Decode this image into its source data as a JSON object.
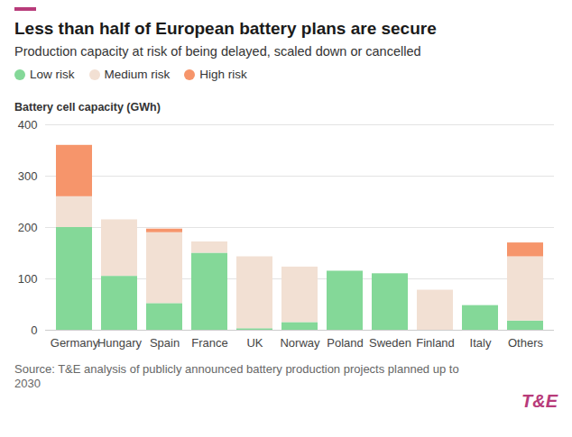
{
  "chart_data": {
    "type": "bar",
    "stacked": true,
    "title": "Less than half of European battery plans are secure",
    "subtitle": "Production capacity at risk of being delayed, scaled down or cancelled",
    "y_label": "Battery cell capacity (GWh)",
    "source": "Source: T&E analysis of publicly announced battery production projects planned up to 2030",
    "logo": "T&E",
    "categories": [
      "Germany",
      "Hungary",
      "Spain",
      "France",
      "UK",
      "Norway",
      "Poland",
      "Sweden",
      "Finland",
      "Italy",
      "Others"
    ],
    "series": [
      {
        "name": "Low risk",
        "color": "#84d898",
        "values": [
          200,
          105,
          52,
          150,
          3,
          15,
          115,
          110,
          0,
          48,
          18
        ]
      },
      {
        "name": "Medium risk",
        "color": "#f2e0d3",
        "values": [
          60,
          110,
          138,
          22,
          140,
          108,
          0,
          0,
          78,
          0,
          125
        ]
      },
      {
        "name": "High risk",
        "color": "#f6956b",
        "values": [
          100,
          0,
          7,
          0,
          0,
          0,
          0,
          0,
          0,
          0,
          27
        ]
      }
    ],
    "ylim": [
      0,
      400
    ],
    "yticks": [
      0,
      100,
      200,
      300,
      400
    ],
    "grid": true,
    "legend": "top"
  }
}
